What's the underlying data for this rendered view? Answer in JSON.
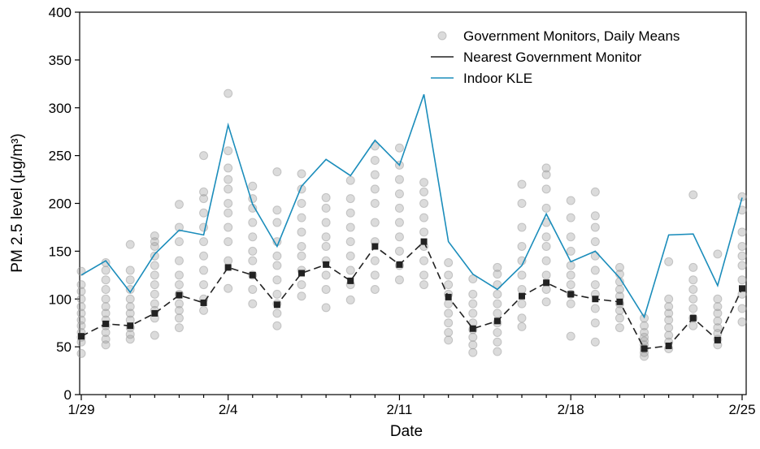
{
  "chart_data": {
    "type": "line",
    "xlabel": "Date",
    "ylabel": "PM 2.5 level (μg/m³)",
    "categories": [
      "1/29",
      null,
      null,
      null,
      null,
      null,
      "2/4",
      null,
      null,
      null,
      null,
      null,
      null,
      "2/11",
      null,
      null,
      null,
      null,
      null,
      null,
      "2/18",
      null,
      null,
      null,
      null,
      null,
      null,
      "2/25"
    ],
    "ylim": [
      0,
      400
    ],
    "yticks": [
      0,
      50,
      100,
      150,
      200,
      250,
      300,
      350,
      400
    ],
    "legend": "upper right",
    "series": [
      {
        "name": "Government Monitors, Daily Means",
        "type": "scatter",
        "color": "#999999",
        "values": [
          [
            43,
            55,
            60,
            65,
            72,
            78,
            85,
            92,
            100,
            108,
            115,
            129
          ],
          [
            52,
            58,
            65,
            72,
            78,
            85,
            92,
            100,
            110,
            120,
            130,
            138
          ],
          [
            58,
            63,
            70,
            78,
            85,
            92,
            100,
            110,
            120,
            130,
            157
          ],
          [
            62,
            80,
            88,
            95,
            105,
            115,
            125,
            135,
            145,
            155,
            160,
            166
          ],
          [
            70,
            80,
            88,
            95,
            105,
            115,
            125,
            140,
            160,
            175,
            199
          ],
          [
            88,
            100,
            115,
            130,
            145,
            160,
            175,
            190,
            205,
            212,
            250
          ],
          [
            111,
            140,
            160,
            175,
            190,
            200,
            215,
            225,
            237,
            255,
            315
          ],
          [
            95,
            110,
            125,
            140,
            150,
            165,
            180,
            195,
            205,
            218
          ],
          [
            72,
            85,
            95,
            105,
            120,
            135,
            145,
            160,
            180,
            193,
            233
          ],
          [
            103,
            115,
            130,
            145,
            155,
            170,
            185,
            200,
            215,
            231
          ],
          [
            91,
            110,
            125,
            140,
            155,
            165,
            180,
            195,
            206
          ],
          [
            99,
            115,
            130,
            145,
            160,
            175,
            190,
            205,
            224
          ],
          [
            110,
            125,
            140,
            160,
            180,
            200,
            215,
            230,
            245,
            260
          ],
          [
            120,
            135,
            150,
            165,
            180,
            195,
            210,
            225,
            240,
            258
          ],
          [
            115,
            125,
            140,
            155,
            170,
            185,
            200,
            212,
            222
          ],
          [
            57,
            65,
            75,
            85,
            95,
            105,
            115,
            125,
            138
          ],
          [
            44,
            52,
            60,
            68,
            75,
            85,
            95,
            105,
            121
          ],
          [
            45,
            55,
            65,
            75,
            85,
            95,
            105,
            115,
            126,
            133
          ],
          [
            71,
            80,
            95,
            110,
            125,
            140,
            155,
            175,
            200,
            220
          ],
          [
            97,
            110,
            125,
            140,
            155,
            165,
            180,
            195,
            215,
            230,
            237
          ],
          [
            61,
            95,
            105,
            115,
            125,
            135,
            150,
            165,
            185,
            203
          ],
          [
            55,
            75,
            90,
            105,
            115,
            130,
            145,
            160,
            175,
            187,
            212
          ],
          [
            70,
            80,
            88,
            95,
            103,
            110,
            118,
            126,
            133
          ],
          [
            40,
            44,
            48,
            52,
            56,
            60,
            65,
            72,
            80
          ],
          [
            48,
            55,
            62,
            70,
            78,
            85,
            92,
            100,
            139
          ],
          [
            72,
            80,
            90,
            100,
            110,
            120,
            133,
            209
          ],
          [
            52,
            58,
            64,
            70,
            77,
            85,
            92,
            100,
            147
          ],
          [
            76,
            90,
            105,
            120,
            135,
            145,
            155,
            170,
            193,
            207
          ]
        ]
      },
      {
        "name": "Nearest Government Monitor",
        "type": "line",
        "dashed": true,
        "marker": "square",
        "color": "#222222",
        "values": [
          61,
          74,
          72,
          85,
          104,
          96,
          133,
          125,
          94,
          127,
          136,
          119,
          155,
          136,
          160,
          102,
          69,
          77,
          103,
          117,
          105,
          100,
          97,
          48,
          51,
          80,
          57,
          111
        ]
      },
      {
        "name": "Indoor KLE",
        "type": "line",
        "color": "#1b8dbb",
        "values": [
          125,
          140,
          107,
          147,
          172,
          167,
          282,
          199,
          155,
          218,
          246,
          229,
          266,
          240,
          314,
          160,
          126,
          110,
          135,
          189,
          139,
          150,
          122,
          81,
          167,
          168,
          114,
          206
        ]
      }
    ]
  }
}
